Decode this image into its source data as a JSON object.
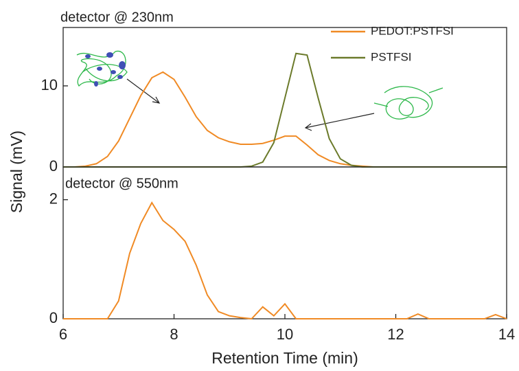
{
  "chart_data": [
    {
      "type": "line",
      "title": "detector @ 230nm",
      "y_label": "Signal (mV)",
      "x": [
        6,
        6.2,
        6.4,
        6.6,
        6.8,
        7.0,
        7.2,
        7.4,
        7.6,
        7.8,
        8.0,
        8.2,
        8.4,
        8.6,
        8.8,
        9.0,
        9.2,
        9.4,
        9.6,
        9.8,
        10.0,
        10.2,
        10.4,
        10.6,
        10.8,
        11.0,
        11.2,
        11.4,
        11.6,
        11.8,
        12.0,
        12.2,
        12.4,
        12.6,
        12.8,
        13.0,
        13.2,
        13.4,
        13.6,
        13.8,
        14.0
      ],
      "series": [
        {
          "name": "PEDOT:PSTFSI",
          "color": "#f08a24",
          "values": [
            0,
            0,
            0.1,
            0.4,
            1.3,
            3.2,
            6.0,
            8.8,
            11.0,
            11.7,
            10.8,
            8.6,
            6.2,
            4.5,
            3.6,
            3.1,
            2.8,
            2.8,
            2.9,
            3.3,
            3.8,
            3.8,
            2.7,
            1.5,
            0.8,
            0.4,
            0.2,
            0.1,
            0,
            0,
            0,
            0,
            0,
            0,
            0,
            0,
            0,
            0,
            0,
            0,
            0
          ]
        },
        {
          "name": "PSTFSI",
          "color": "#6b7a2a",
          "values": [
            0,
            0,
            0,
            0,
            0,
            0,
            0,
            0,
            0,
            0,
            0,
            0,
            0,
            0,
            0,
            0,
            0,
            0.1,
            0.6,
            3.0,
            8.5,
            14.0,
            13.8,
            8.5,
            3.5,
            1.0,
            0.2,
            0,
            0,
            0,
            0,
            0,
            0,
            0,
            0,
            0,
            0,
            0,
            0,
            0,
            0
          ]
        }
      ],
      "xlim": [
        6,
        14
      ],
      "ylim": [
        0,
        17.2
      ],
      "yticks": [
        0,
        10
      ]
    },
    {
      "type": "line",
      "title": "detector @ 550nm",
      "x_label": "Retention Time (min)",
      "x": [
        6,
        6.2,
        6.4,
        6.6,
        6.8,
        7.0,
        7.2,
        7.4,
        7.6,
        7.8,
        8.0,
        8.2,
        8.4,
        8.6,
        8.8,
        9.0,
        9.2,
        9.4,
        9.6,
        9.8,
        10.0,
        10.2,
        10.4,
        10.6,
        10.8,
        11.0,
        11.2,
        11.4,
        11.6,
        11.8,
        12.0,
        12.2,
        12.4,
        12.6,
        12.8,
        13.0,
        13.2,
        13.4,
        13.6,
        13.8,
        14.0
      ],
      "series": [
        {
          "color": "#f08a24",
          "values": [
            0,
            0,
            0,
            0,
            0,
            0.3,
            1.1,
            1.6,
            1.95,
            1.65,
            1.5,
            1.3,
            0.9,
            0.4,
            0.12,
            0.05,
            0.02,
            0,
            0.2,
            0.05,
            0.25,
            0,
            0,
            0,
            0,
            0,
            0,
            0,
            0,
            0,
            0,
            0,
            0.08,
            0,
            0,
            0,
            0,
            0,
            0,
            0.07,
            0
          ]
        }
      ],
      "xlim": [
        6,
        14
      ],
      "ylim": [
        0,
        2.55
      ],
      "xticks": [
        6,
        8,
        10,
        12,
        14
      ],
      "yticks": [
        0,
        2
      ]
    }
  ]
}
